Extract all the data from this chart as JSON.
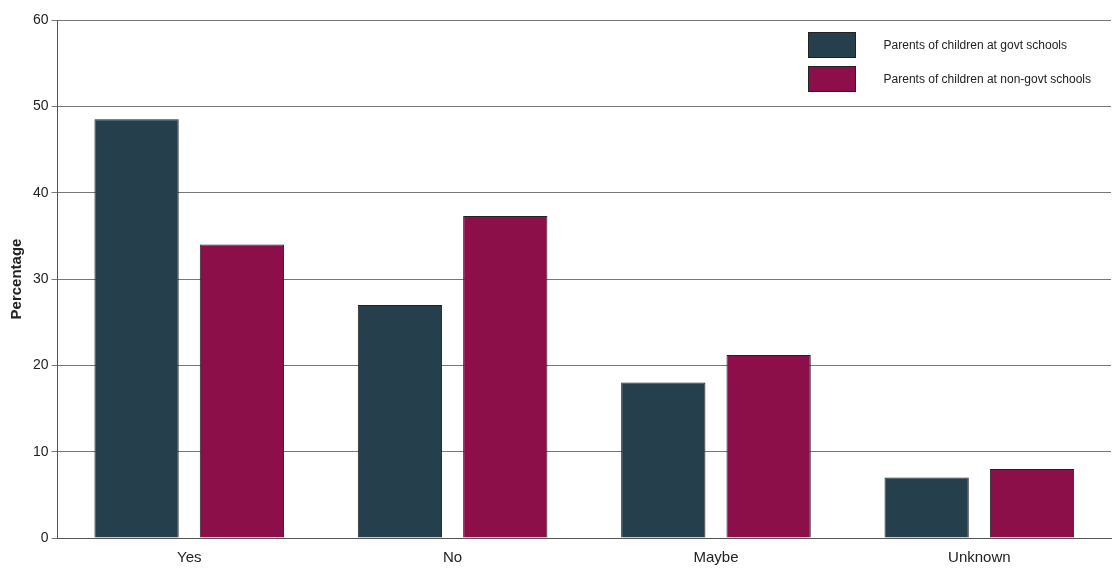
{
  "chart_data": {
    "type": "bar",
    "ylabel": "Percentage",
    "categories": [
      "Yes",
      "No",
      "Maybe",
      "Unknown"
    ],
    "series": [
      {
        "name": "Parents of children at govt schools",
        "color": "#263f4c",
        "values": [
          48.5,
          27,
          18,
          7
        ]
      },
      {
        "name": "Parents of children at non-govt schools",
        "color": "#8c0f4a",
        "values": [
          34,
          37.3,
          21.2,
          8
        ]
      }
    ],
    "ylim": [
      0,
      60
    ],
    "yticks": [
      0,
      10,
      20,
      30,
      40,
      50,
      60
    ],
    "grid": "y",
    "legend": "top right"
  }
}
